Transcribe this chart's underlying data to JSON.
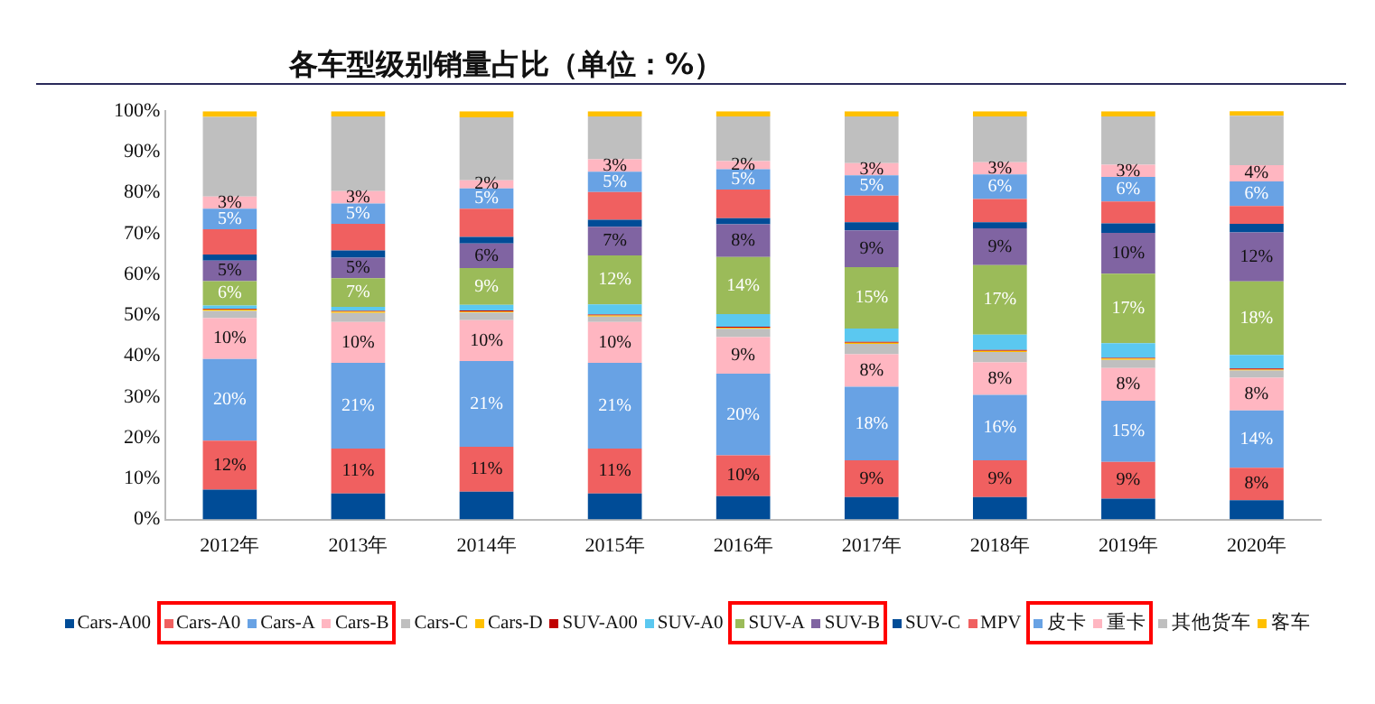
{
  "chart_data": {
    "type": "bar",
    "title": "各车型级别销量占比（单位：%）",
    "stacked": true,
    "legend": "bottom",
    "grid": false,
    "categories": [
      "2012年",
      "2013年",
      "2014年",
      "2015年",
      "2016年",
      "2017年",
      "2018年",
      "2019年",
      "2020年"
    ],
    "ylim": [
      0,
      100
    ],
    "yticks": [
      {
        "value": 0,
        "label": "0%"
      },
      {
        "value": 10,
        "label": "10%"
      },
      {
        "value": 20,
        "label": "20%"
      },
      {
        "value": 30,
        "label": "30%"
      },
      {
        "value": 40,
        "label": "40%"
      },
      {
        "value": 50,
        "label": "50%"
      },
      {
        "value": 60,
        "label": "60%"
      },
      {
        "value": 70,
        "label": "70%"
      },
      {
        "value": 80,
        "label": "80%"
      },
      {
        "value": 90,
        "label": "90%"
      },
      {
        "value": 100,
        "label": "100%"
      }
    ],
    "series": [
      {
        "name": "Cars-A00",
        "color": "#004c97",
        "values": [
          7.3,
          6.4,
          6.8,
          6.4,
          5.7,
          5.5,
          5.5,
          5.1,
          4.7
        ]
      },
      {
        "name": "Cars-A0",
        "color": "#f06060",
        "values": [
          12,
          11,
          11,
          11,
          10,
          9,
          9,
          9,
          8
        ],
        "value_labels": [
          "12%",
          "11%",
          "11%",
          "11%",
          "10%",
          "9%",
          "9%",
          "9%",
          "8%"
        ]
      },
      {
        "name": "Cars-A",
        "color": "#68a2e4",
        "values": [
          20,
          21,
          21,
          21,
          20,
          18,
          16,
          15,
          14
        ],
        "value_labels": [
          "20%",
          "21%",
          "21%",
          "21%",
          "20%",
          "18%",
          "16%",
          "15%",
          "14%"
        ]
      },
      {
        "name": "Cars-B",
        "color": "#ffb6c1",
        "values": [
          10,
          10,
          10,
          10,
          9,
          8,
          8,
          8,
          8
        ],
        "value_labels": [
          "10%",
          "10%",
          "10%",
          "10%",
          "9%",
          "8%",
          "8%",
          "8%",
          "8%"
        ]
      },
      {
        "name": "Cars-C",
        "color": "#bfbfbf",
        "values": [
          1.8,
          2.2,
          1.9,
          1.3,
          2,
          2.5,
          2.5,
          2,
          1.8
        ]
      },
      {
        "name": "Cars-D",
        "color": "#ffc000",
        "values": [
          0.3,
          0.3,
          0.3,
          0.3,
          0.3,
          0.3,
          0.3,
          0.3,
          0.2
        ]
      },
      {
        "name": "SUV-A00",
        "color": "#c00000",
        "values": [
          0.2,
          0.2,
          0.2,
          0.2,
          0.2,
          0.2,
          0.2,
          0.2,
          0.3
        ]
      },
      {
        "name": "SUV-A0",
        "color": "#5bc8f0",
        "values": [
          0.8,
          1,
          1.4,
          2.5,
          3.1,
          3.3,
          3.8,
          3.6,
          3.3
        ]
      },
      {
        "name": "SUV-A",
        "color": "#9bbb59",
        "values": [
          6,
          7,
          9,
          12,
          14,
          15,
          17,
          17,
          18
        ],
        "value_labels": [
          "6%",
          "7%",
          "9%",
          "12%",
          "14%",
          "15%",
          "17%",
          "17%",
          "18%"
        ]
      },
      {
        "name": "SUV-B",
        "color": "#8064a2",
        "values": [
          5,
          5,
          6,
          7,
          8,
          9,
          9,
          10,
          12
        ],
        "value_labels": [
          "5%",
          "5%",
          "6%",
          "7%",
          "8%",
          "9%",
          "9%",
          "10%",
          "12%"
        ]
      },
      {
        "name": "SUV-C",
        "color": "#004c97",
        "values": [
          1.5,
          1.8,
          1.6,
          1.7,
          1.5,
          2,
          1.5,
          2.3,
          2.1
        ]
      },
      {
        "name": "MPV",
        "color": "#f06060",
        "values": [
          6.2,
          6.5,
          6.9,
          6.8,
          7,
          6.5,
          5.7,
          5.4,
          4.4
        ]
      },
      {
        "name": "皮卡",
        "color": "#68a2e4",
        "values": [
          5,
          5,
          5,
          5,
          5,
          5,
          6,
          6,
          6
        ],
        "value_labels": [
          "5%",
          "5%",
          "5%",
          "5%",
          "5%",
          "5%",
          "6%",
          "6%",
          "6%"
        ]
      },
      {
        "name": "重卡",
        "color": "#ffb6c1",
        "values": [
          3,
          3,
          2,
          3,
          2,
          3,
          3,
          3,
          4
        ],
        "value_labels": [
          "3%",
          "3%",
          "2%",
          "3%",
          "2%",
          "3%",
          "3%",
          "3%",
          "4%"
        ]
      },
      {
        "name": "其他货车",
        "color": "#bfbfbf",
        "values": [
          19.5,
          18.3,
          15.4,
          10.5,
          10.9,
          11.4,
          11.2,
          11.8,
          12.1
        ]
      },
      {
        "name": "客车",
        "color": "#ffc000",
        "values": [
          1.4,
          1.3,
          1.5,
          1.3,
          1.3,
          1.3,
          1.3,
          1.3,
          1.3
        ]
      }
    ]
  }
}
